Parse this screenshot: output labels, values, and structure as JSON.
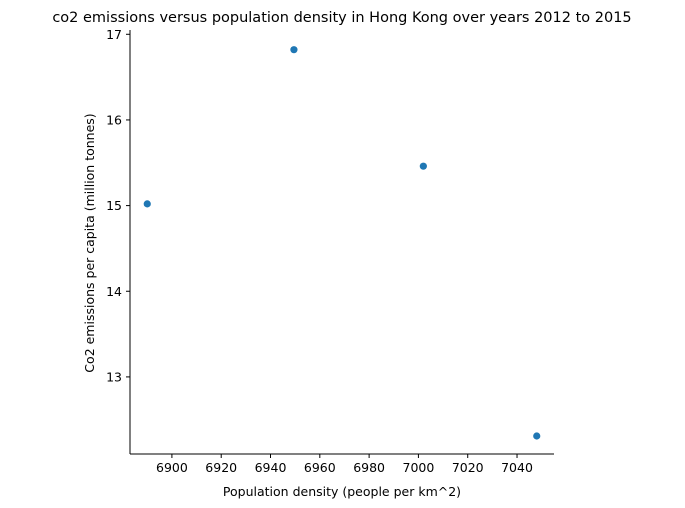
{
  "chart_data": {
    "type": "scatter",
    "title": "co2 emissions versus population density in Hong Kong over years 2012 to 2015",
    "xlabel": "Population density (people per km^2)",
    "ylabel": "Co2 emissions per capita (million tonnes)",
    "xlim": [
      6883,
      7055
    ],
    "ylim": [
      12.1,
      17.05
    ],
    "xticks": [
      6900,
      6920,
      6940,
      6960,
      6980,
      7000,
      7020,
      7040
    ],
    "yticks": [
      13,
      14,
      15,
      16,
      17
    ],
    "grid": false,
    "points": [
      {
        "x": 6890,
        "y": 15.02
      },
      {
        "x": 6949.5,
        "y": 16.82
      },
      {
        "x": 7002,
        "y": 15.46
      },
      {
        "x": 7048,
        "y": 12.31
      }
    ],
    "marker_color": "#1f77b4"
  }
}
